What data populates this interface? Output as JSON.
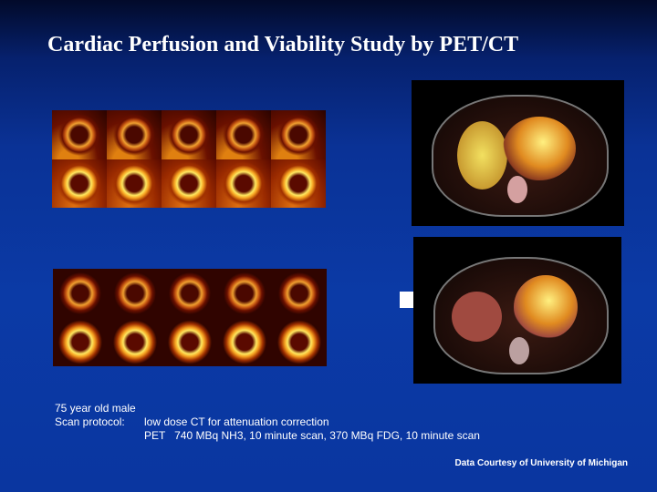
{
  "title": "Cardiac Perfusion and Viability Study by PET/CT",
  "notes": {
    "patient": "75 year old male",
    "protocol_label": "Scan protocol:",
    "protocol_line1": "low dose CT for attenuation correction",
    "protocol_line2": "PET   740 MBq NH3, 10 minute scan, 370 MBq FDG, 10 minute scan"
  },
  "credit": "Data Courtesy of University of Michigan",
  "colors": {
    "background": "#0b3aa6",
    "heat_hot": "#ffe860",
    "heat_mid": "#e07010",
    "heat_cold": "#3a0500"
  }
}
